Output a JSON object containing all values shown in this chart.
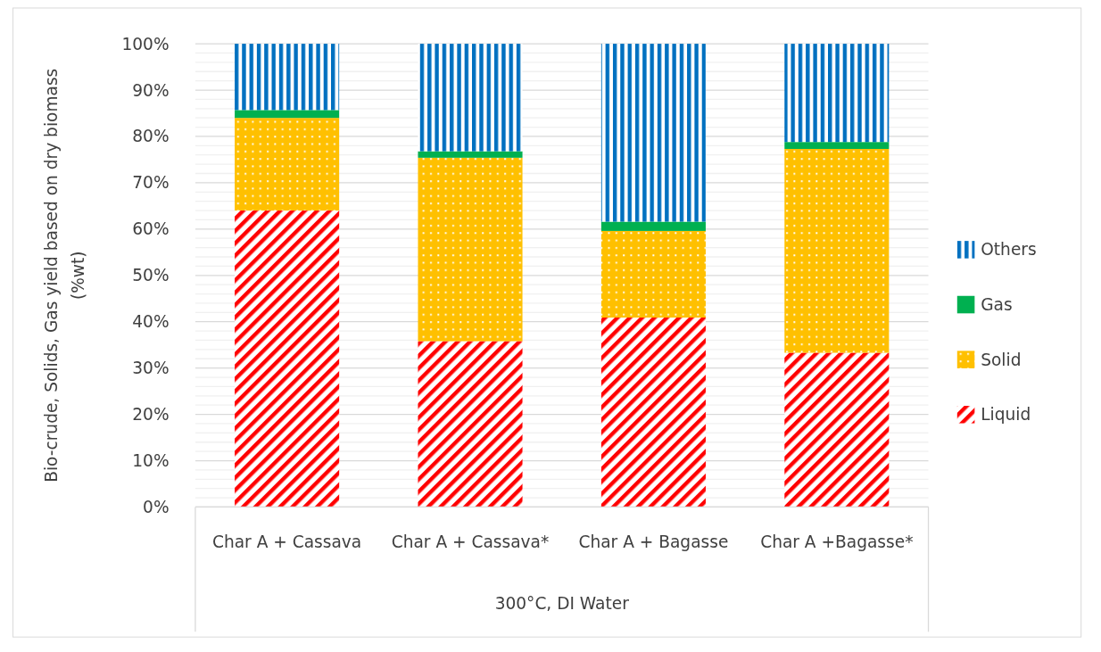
{
  "chart_data": {
    "type": "bar",
    "stacked": true,
    "categories": [
      "Char A + Cassava",
      "Char A + Cassava*",
      "Char A + Bagasse",
      "Char A +Bagasse*"
    ],
    "xlabel": "300°C, DI Water",
    "ylabel": "Bio-crude, Solids, Gas yield based on dry biomass (%wt)",
    "series": [
      {
        "name": "Liquid",
        "color": "#ff0000",
        "values": [
          64.0,
          35.8,
          40.9,
          33.3
        ]
      },
      {
        "name": "Solid",
        "color": "#ffc000",
        "values": [
          20.0,
          39.6,
          18.7,
          44.0
        ]
      },
      {
        "name": "Gas",
        "color": "#00b050",
        "values": [
          1.7,
          1.4,
          2.0,
          1.5
        ]
      },
      {
        "name": "Others",
        "color": "#0070c0",
        "values": [
          14.3,
          23.2,
          38.4,
          21.2
        ]
      }
    ],
    "ylim": [
      0,
      100
    ],
    "yticks": [
      {
        "value": 0,
        "label": "0%"
      },
      {
        "value": 2,
        "label": null
      },
      {
        "value": 4,
        "label": null
      },
      {
        "value": 6,
        "label": null
      },
      {
        "value": 8,
        "label": null
      },
      {
        "value": 10,
        "label": "10%"
      },
      {
        "value": 12,
        "label": null
      },
      {
        "value": 14,
        "label": null
      },
      {
        "value": 16,
        "label": null
      },
      {
        "value": 18,
        "label": null
      },
      {
        "value": 20,
        "label": "20%"
      },
      {
        "value": 22,
        "label": null
      },
      {
        "value": 24,
        "label": null
      },
      {
        "value": 26,
        "label": null
      },
      {
        "value": 28,
        "label": null
      },
      {
        "value": 30,
        "label": "30%"
      },
      {
        "value": 32,
        "label": null
      },
      {
        "value": 34,
        "label": null
      },
      {
        "value": 36,
        "label": null
      },
      {
        "value": 38,
        "label": null
      },
      {
        "value": 40,
        "label": "40%"
      },
      {
        "value": 42,
        "label": null
      },
      {
        "value": 44,
        "label": null
      },
      {
        "value": 46,
        "label": null
      },
      {
        "value": 48,
        "label": null
      },
      {
        "value": 50,
        "label": "50%"
      },
      {
        "value": 52,
        "label": null
      },
      {
        "value": 54,
        "label": null
      },
      {
        "value": 56,
        "label": null
      },
      {
        "value": 58,
        "label": null
      },
      {
        "value": 60,
        "label": "60%"
      },
      {
        "value": 62,
        "label": null
      },
      {
        "value": 64,
        "label": null
      },
      {
        "value": 66,
        "label": null
      },
      {
        "value": 68,
        "label": null
      },
      {
        "value": 70,
        "label": "70%"
      },
      {
        "value": 72,
        "label": null
      },
      {
        "value": 74,
        "label": null
      },
      {
        "value": 76,
        "label": null
      },
      {
        "value": 78,
        "label": null
      },
      {
        "value": 80,
        "label": "80%"
      },
      {
        "value": 82,
        "label": null
      },
      {
        "value": 84,
        "label": null
      },
      {
        "value": 86,
        "label": null
      },
      {
        "value": 88,
        "label": null
      },
      {
        "value": 90,
        "label": "90%"
      },
      {
        "value": 92,
        "label": null
      },
      {
        "value": 94,
        "label": null
      },
      {
        "value": 96,
        "label": null
      },
      {
        "value": 98,
        "label": null
      },
      {
        "value": 100,
        "label": "100%"
      }
    ],
    "grid": "y",
    "legend": "right"
  }
}
